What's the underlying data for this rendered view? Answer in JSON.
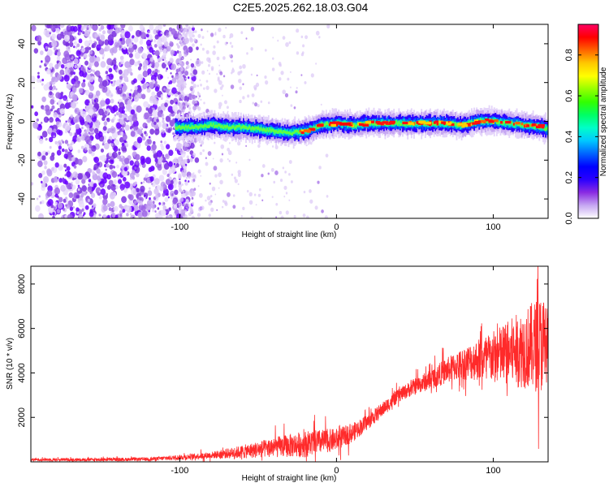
{
  "figure_title": "C2E5.2025.262.18.03.G04",
  "chart_data": [
    {
      "type": "heatmap",
      "title": "C2E5.2025.262.18.03.G04",
      "xlabel": "Height of straight line (km)",
      "ylabel": "Frequency (Hz)",
      "xlim": [
        -195,
        135
      ],
      "ylim": [
        -50,
        50
      ],
      "xticks": [
        -100,
        0,
        100
      ],
      "xtick_labels": [
        "-100",
        "0",
        "100"
      ],
      "yticks": [
        -40,
        -20,
        0,
        20,
        40
      ],
      "ytick_labels": [
        "-40",
        "-20",
        "0",
        "20",
        "40"
      ],
      "colorbar": {
        "label": "Normalized spectral amplitude",
        "range": [
          0,
          0.95
        ],
        "ticks": [
          0.0,
          0.2,
          0.4,
          0.6,
          0.8
        ],
        "tick_labels": [
          "0.0",
          "0.2",
          "0.4",
          "0.6",
          "0.8"
        ],
        "colormap": [
          "#ffffff",
          "#c6a7f2",
          "#8a2be2",
          "#2a00ff",
          "#0000ff",
          "#0064ff",
          "#00c8ff",
          "#00ffc8",
          "#00ff64",
          "#32ff00",
          "#96ff00",
          "#ffff00",
          "#ffc800",
          "#ff6400",
          "#ff0000",
          "#ff0064"
        ]
      },
      "ridge": {
        "description": "frequency of the main signal track vs height",
        "x": [
          -103,
          -90,
          -80,
          -70,
          -60,
          -50,
          -40,
          -30,
          -20,
          -10,
          0,
          10,
          20,
          30,
          40,
          50,
          60,
          70,
          80,
          90,
          100,
          110,
          120,
          130,
          135
        ],
        "y": [
          -3,
          -3,
          -2,
          -3,
          -3,
          -4,
          -5,
          -6,
          -5,
          -2,
          -1,
          -2,
          -1,
          -1,
          -1,
          -1,
          -1,
          -1,
          -2,
          0,
          0,
          -1,
          -2,
          -3,
          -4
        ],
        "noise_region_xmax": -100
      }
    },
    {
      "type": "line",
      "xlabel": "Height of straight line (km)",
      "ylabel": "SNR (10 * v/v)",
      "xlim": [
        -195,
        135
      ],
      "ylim": [
        0,
        8800
      ],
      "xticks": [
        -100,
        0,
        100
      ],
      "xtick_labels": [
        "-100",
        "0",
        "100"
      ],
      "yticks": [
        2000,
        4000,
        6000,
        8000
      ],
      "ytick_labels": [
        "2000",
        "4000",
        "6000",
        "8000"
      ],
      "color": "#ff2a2a",
      "trend": {
        "x": [
          -195,
          -160,
          -120,
          -100,
          -80,
          -60,
          -40,
          -20,
          0,
          10,
          20,
          30,
          40,
          50,
          60,
          70,
          80,
          90,
          100,
          110,
          120,
          130,
          135
        ],
        "y": [
          100,
          100,
          120,
          200,
          300,
          450,
          650,
          800,
          1000,
          1300,
          1800,
          2400,
          3000,
          3400,
          3700,
          4100,
          4400,
          4600,
          4700,
          4900,
          5100,
          5300,
          5300
        ]
      },
      "envelope": {
        "x": [
          -195,
          -120,
          -80,
          -60,
          -40,
          -20,
          0,
          20,
          40,
          60,
          80,
          100,
          120,
          130,
          135
        ],
        "amp": [
          60,
          80,
          150,
          300,
          450,
          600,
          500,
          350,
          300,
          450,
          700,
          1200,
          1800,
          2200,
          2200
        ]
      }
    }
  ]
}
